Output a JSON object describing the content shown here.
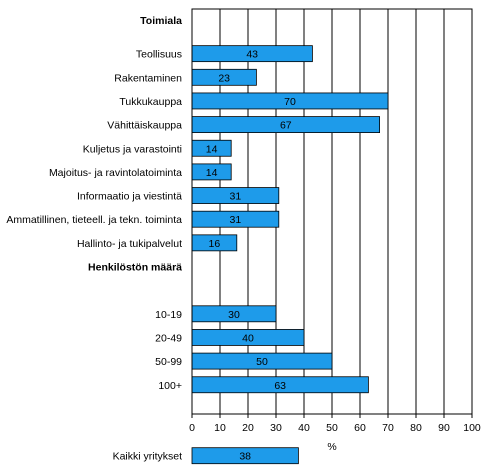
{
  "chart_data": {
    "type": "bar",
    "orientation": "horizontal",
    "xlabel": "%",
    "xlim": [
      0,
      100
    ],
    "xticks": [
      0,
      10,
      20,
      30,
      40,
      50,
      60,
      70,
      80,
      90,
      100
    ],
    "grid": "vertical",
    "bar_color": "#1e9bea",
    "rows": [
      {
        "kind": "group",
        "label": "Toimiala"
      },
      {
        "kind": "bar",
        "label": "Teollisuus",
        "value": 43
      },
      {
        "kind": "bar",
        "label": "Rakentaminen",
        "value": 23
      },
      {
        "kind": "bar",
        "label": "Tukkukauppa",
        "value": 70
      },
      {
        "kind": "bar",
        "label": "Vähittäiskauppa",
        "value": 67
      },
      {
        "kind": "bar",
        "label": "Kuljetus ja varastointi",
        "value": 14
      },
      {
        "kind": "bar",
        "label": "Majoitus- ja ravintolatoiminta",
        "value": 14
      },
      {
        "kind": "bar",
        "label": "Informaatio ja viestintä",
        "value": 31
      },
      {
        "kind": "bar",
        "label": "Ammatillinen, tieteell. ja tekn. toiminta",
        "value": 31
      },
      {
        "kind": "bar",
        "label": "Hallinto- ja tukipalvelut",
        "value": 16
      },
      {
        "kind": "group",
        "label": "Henkilöstön määrä"
      },
      {
        "kind": "spacer"
      },
      {
        "kind": "bar",
        "label": "10-19",
        "value": 30
      },
      {
        "kind": "bar",
        "label": "20-49",
        "value": 40
      },
      {
        "kind": "bar",
        "label": "50-99",
        "value": 50
      },
      {
        "kind": "bar",
        "label": "100+",
        "value": 63
      },
      {
        "kind": "spacer"
      },
      {
        "kind": "spacer"
      },
      {
        "kind": "bar",
        "label": "Kaikki yritykset",
        "value": 38
      }
    ]
  }
}
